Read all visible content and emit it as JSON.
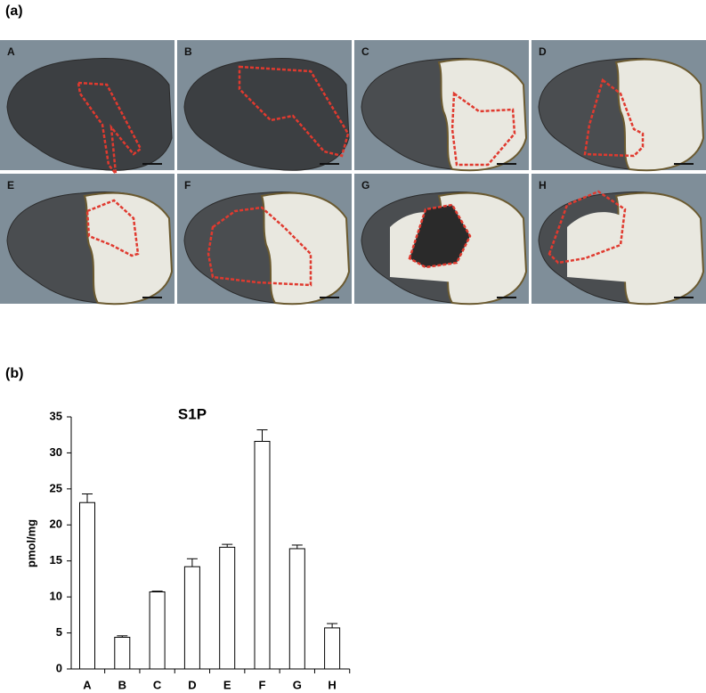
{
  "panel_a": {
    "label": "(a)",
    "labels": [
      "A",
      "B",
      "C",
      "D",
      "E",
      "F",
      "G",
      "H"
    ]
  },
  "panel_b": {
    "label": "(b)"
  },
  "chart_data": {
    "type": "bar",
    "title": "S1P",
    "y_label": "pmol/mg",
    "categories": [
      "A",
      "B",
      "C",
      "D",
      "E",
      "F",
      "G",
      "H"
    ],
    "values": [
      23.1,
      4.4,
      10.7,
      14.2,
      16.9,
      31.6,
      16.7,
      5.7
    ],
    "errors": [
      1.2,
      0.2,
      0.1,
      1.1,
      0.4,
      1.6,
      0.5,
      0.6
    ],
    "color": "#ffffff",
    "ylim": [
      0,
      35
    ],
    "yticks": [
      0,
      5,
      10,
      15,
      20,
      25,
      30,
      35
    ],
    "grid": false
  }
}
